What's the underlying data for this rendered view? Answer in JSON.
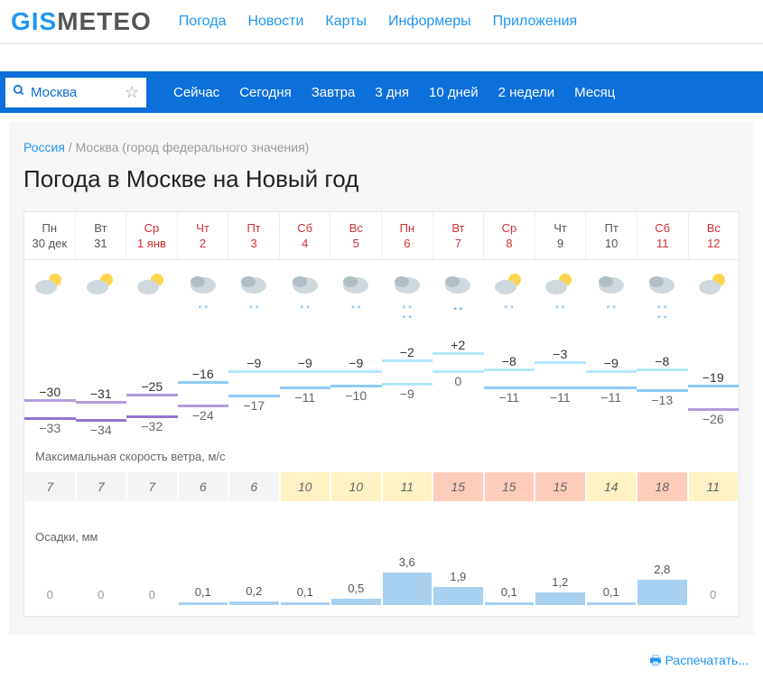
{
  "logo": {
    "part1": "GIS",
    "part2": "METEO"
  },
  "topnav": [
    "Погода",
    "Новости",
    "Карты",
    "Информеры",
    "Приложения"
  ],
  "search": {
    "city": "Москва"
  },
  "periods": [
    "Сейчас",
    "Сегодня",
    "Завтра",
    "3 дня",
    "10 дней",
    "2 недели",
    "Месяц"
  ],
  "breadcrumb": {
    "country": "Россия",
    "sep": " / ",
    "region": "Москва (город федерального значения)"
  },
  "title": "Погода в Москве на Новый год",
  "days": [
    {
      "name": "Пн",
      "date": "30 дек",
      "weekend": false
    },
    {
      "name": "Вт",
      "date": "31",
      "weekend": false
    },
    {
      "name": "Ср",
      "date": "1 янв",
      "weekend": true
    },
    {
      "name": "Чт",
      "date": "2",
      "weekend": true
    },
    {
      "name": "Пт",
      "date": "3",
      "weekend": true
    },
    {
      "name": "Сб",
      "date": "4",
      "weekend": true
    },
    {
      "name": "Вс",
      "date": "5",
      "weekend": true
    },
    {
      "name": "Пн",
      "date": "6",
      "weekend": true
    },
    {
      "name": "Вт",
      "date": "7",
      "weekend": true
    },
    {
      "name": "Ср",
      "date": "8",
      "weekend": true
    },
    {
      "name": "Чт",
      "date": "9",
      "weekend": false
    },
    {
      "name": "Пт",
      "date": "10",
      "weekend": false
    },
    {
      "name": "Сб",
      "date": "11",
      "weekend": true
    },
    {
      "name": "Вс",
      "date": "12",
      "weekend": true
    }
  ],
  "icons": [
    {
      "type": "partly",
      "snow": ""
    },
    {
      "type": "partly",
      "snow": ""
    },
    {
      "type": "partly",
      "snow": ""
    },
    {
      "type": "cloud",
      "snow": "* *"
    },
    {
      "type": "cloud",
      "snow": "* *"
    },
    {
      "type": "cloud",
      "snow": "* *"
    },
    {
      "type": "cloud",
      "snow": "* *"
    },
    {
      "type": "cloud",
      "snow": "* *\n* *"
    },
    {
      "type": "cloud",
      "snow": "▪ ▪"
    },
    {
      "type": "partly",
      "snow": "* *"
    },
    {
      "type": "partly",
      "snow": "* *"
    },
    {
      "type": "cloud",
      "snow": "* *"
    },
    {
      "type": "cloud",
      "snow": "* *\n* *"
    },
    {
      "type": "partly",
      "snow": ""
    }
  ],
  "temps": {
    "high": [
      -30,
      -31,
      -25,
      -16,
      -9,
      -9,
      -9,
      -2,
      2,
      -8,
      -3,
      -9,
      -8,
      -19
    ],
    "low": [
      -33,
      -34,
      -32,
      -24,
      -17,
      -11,
      -10,
      -9,
      0,
      -11,
      -11,
      -11,
      -13,
      -26
    ],
    "high_colors": [
      "#b39ddb",
      "#b39ddb",
      "#b39ddb",
      "#90caf9",
      "#b3e5fc",
      "#b3e5fc",
      "#b3e5fc",
      "#b3e5fc",
      "#b2ebf2",
      "#b3e5fc",
      "#b3e5fc",
      "#b3e5fc",
      "#b3e5fc",
      "#90caf9"
    ],
    "low_colors": [
      "#9575cd",
      "#9575cd",
      "#9575cd",
      "#b39ddb",
      "#90caf9",
      "#90caf9",
      "#90caf9",
      "#b3e5fc",
      "#b3e5fc",
      "#90caf9",
      "#90caf9",
      "#90caf9",
      "#90caf9",
      "#b39ddb"
    ],
    "high_pos": [
      60,
      62,
      54,
      40,
      28,
      28,
      28,
      16,
      8,
      26,
      18,
      28,
      26,
      44
    ],
    "low_pos": [
      80,
      82,
      78,
      66,
      55,
      46,
      44,
      42,
      28,
      46,
      46,
      46,
      49,
      70
    ]
  },
  "wind": {
    "label": "Максимальная скорость ветра, м/с",
    "values": [
      7,
      7,
      7,
      6,
      6,
      10,
      10,
      11,
      15,
      15,
      15,
      14,
      18,
      11
    ],
    "colors": [
      "#f5f5f5",
      "#f5f5f5",
      "#f5f5f5",
      "#f5f5f5",
      "#f5f5f5",
      "#fff3c4",
      "#fff3c4",
      "#fff3c4",
      "#ffccbc",
      "#ffccbc",
      "#ffccbc",
      "#fff3c4",
      "#ffccbc",
      "#fff3c4"
    ]
  },
  "precip": {
    "label": "Осадки, мм",
    "values": [
      0,
      0,
      0,
      0.1,
      0.2,
      0.1,
      0.5,
      3.6,
      1.9,
      0.1,
      1.2,
      0.1,
      2.8,
      0
    ],
    "heights": [
      0,
      0,
      0,
      3,
      4,
      3,
      7,
      36,
      20,
      3,
      14,
      3,
      28,
      0
    ]
  },
  "print": "Распечатать..."
}
